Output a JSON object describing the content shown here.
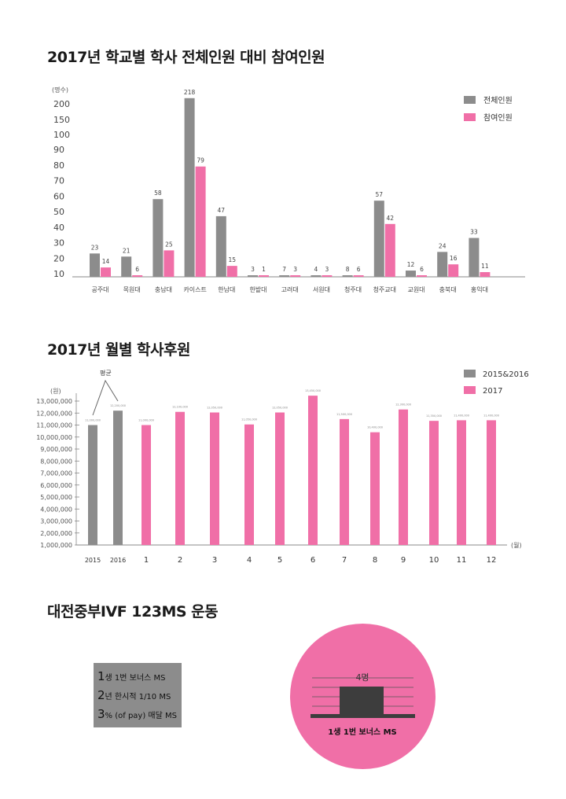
{
  "chart_data": [
    {
      "type": "bar",
      "title": "2017년 학교별 학사 전체인원 대비 참여인원",
      "ylabel": "(명수)",
      "y_ticks": [
        "10",
        "20",
        "30",
        "40",
        "50",
        "60",
        "70",
        "80",
        "90",
        "100",
        "150",
        "200"
      ],
      "categories": [
        "공주대",
        "목원대",
        "충남대",
        "카이스트",
        "한남대",
        "한밭대",
        "고려대",
        "서원대",
        "청주대",
        "청주교대",
        "교원대",
        "충북대",
        "홍익대"
      ],
      "series": [
        {
          "name": "전체인원",
          "color": "#8c8c8c",
          "values": [
            23,
            21,
            58,
            218,
            47,
            3,
            7,
            4,
            8,
            57,
            12,
            24,
            33
          ]
        },
        {
          "name": "참여인원",
          "color": "#f06fa7",
          "values": [
            14,
            6,
            25,
            79,
            15,
            1,
            3,
            3,
            6,
            42,
            6,
            16,
            11
          ]
        }
      ],
      "legend": "top-right"
    },
    {
      "type": "bar",
      "title": "2017년 월별 학사후원",
      "ylabel": "(원)",
      "xlabel": "(월)",
      "annotation": "평균",
      "y_ticks": [
        "1,000,000",
        "2,000,000",
        "3,000,000",
        "4,000,000",
        "5,000,000",
        "6,000,000",
        "7,000,000",
        "8,000,000",
        "9,000,000",
        "10,000,000",
        "11,000,000",
        "12,000,000",
        "13,000,000"
      ],
      "categories": [
        "2015",
        "2016",
        "1",
        "2",
        "3",
        "4",
        "5",
        "6",
        "7",
        "8",
        "9",
        "10",
        "11",
        "12"
      ],
      "values": [
        11000000,
        12200000,
        11000000,
        12100000,
        12050000,
        11050000,
        12050000,
        13450000,
        11500000,
        10400000,
        12300000,
        11350000,
        11400000,
        11400000
      ],
      "bar_groups": [
        "2015&2016",
        "2015&2016",
        "2017",
        "2017",
        "2017",
        "2017",
        "2017",
        "2017",
        "2017",
        "2017",
        "2017",
        "2017",
        "2017",
        "2017"
      ],
      "series": [
        {
          "name": "2015&2016",
          "color": "#8c8c8c"
        },
        {
          "name": "2017",
          "color": "#f06fa7"
        }
      ],
      "legend": "top-right"
    }
  ],
  "section3": {
    "title": "대전중부IVF 123MS 운동",
    "items": [
      {
        "num": "1",
        "text": "생 1번 보너스 MS"
      },
      {
        "num": "2",
        "text": "년 한시적 1/10 MS"
      },
      {
        "num": "3",
        "text": "% (of pay) 매달 MS"
      }
    ],
    "circle_value": "4명",
    "circle_caption": "1생 1번 보너스 MS"
  }
}
